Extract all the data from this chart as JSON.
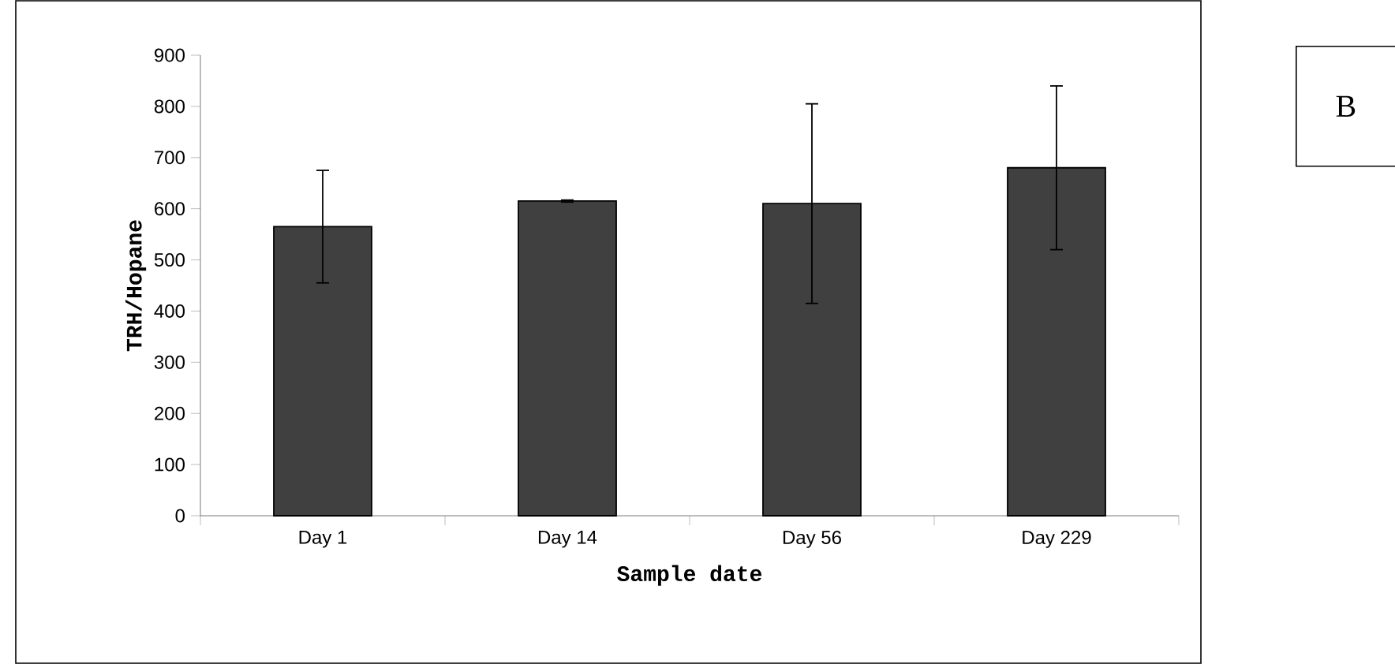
{
  "chart_data": {
    "type": "bar",
    "categories": [
      "Day 1",
      "Day 14",
      "Day 56",
      "Day 229"
    ],
    "values": [
      565,
      615,
      610,
      680
    ],
    "errors": [
      110,
      2,
      195,
      160
    ],
    "color": "#404040",
    "xlabel": "Sample date",
    "ylabel": "TRH/Hopane",
    "ylim": [
      0,
      900
    ],
    "yticks": [
      0,
      100,
      200,
      300,
      400,
      500,
      600,
      700,
      800,
      900
    ],
    "annotations": [
      "B"
    ]
  }
}
